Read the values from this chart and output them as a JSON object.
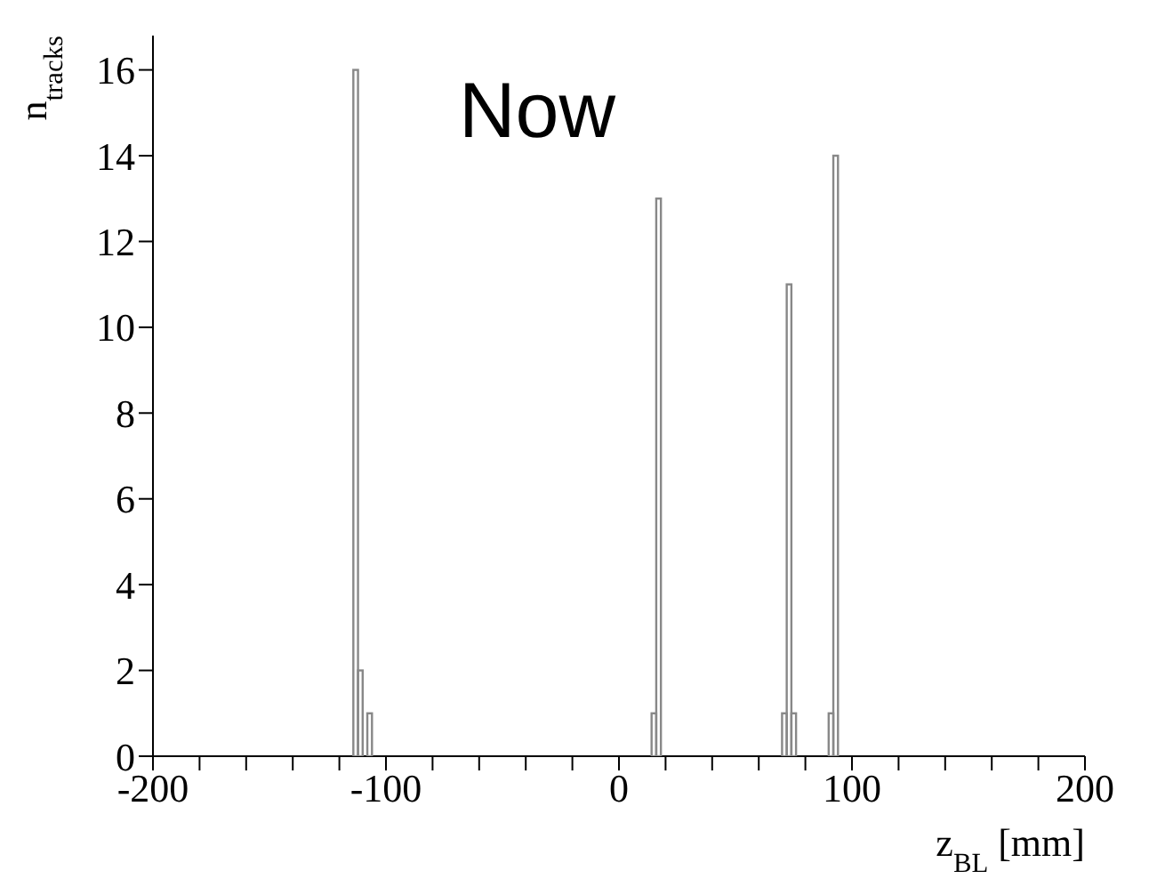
{
  "chart_data": {
    "type": "histogram",
    "xlabel": "z$_{BL}$ [mm]",
    "ylabel": "n$_{tracks}$",
    "annotations": [
      "Now"
    ],
    "bins": [
      -114,
      -112,
      -110,
      -108,
      -106,
      14,
      16,
      18,
      70,
      72,
      74,
      76,
      90,
      92,
      94
    ],
    "values": [
      16,
      2,
      0,
      1,
      0,
      1,
      13,
      0,
      1,
      11,
      1,
      0,
      1,
      14
    ],
    "color": "#888888",
    "xlim": [
      -200,
      200
    ],
    "xticks": [
      -200,
      {
        "value": -180,
        "label": null
      },
      {
        "value": -160,
        "label": null
      },
      {
        "value": -140,
        "label": null
      },
      {
        "value": -120,
        "label": null
      },
      -100,
      {
        "value": -80,
        "label": null
      },
      {
        "value": -60,
        "label": null
      },
      {
        "value": -40,
        "label": null
      },
      {
        "value": -20,
        "label": null
      },
      0,
      {
        "value": 20,
        "label": null
      },
      {
        "value": 40,
        "label": null
      },
      {
        "value": 60,
        "label": null
      },
      {
        "value": 80,
        "label": null
      },
      100,
      {
        "value": 120,
        "label": null
      },
      {
        "value": 140,
        "label": null
      },
      {
        "value": 160,
        "label": null
      },
      {
        "value": 180,
        "label": null
      },
      200
    ],
    "ylim": [
      0,
      16.8
    ],
    "yticks": [
      0,
      2,
      4,
      6,
      8,
      10,
      12,
      14,
      16
    ]
  }
}
